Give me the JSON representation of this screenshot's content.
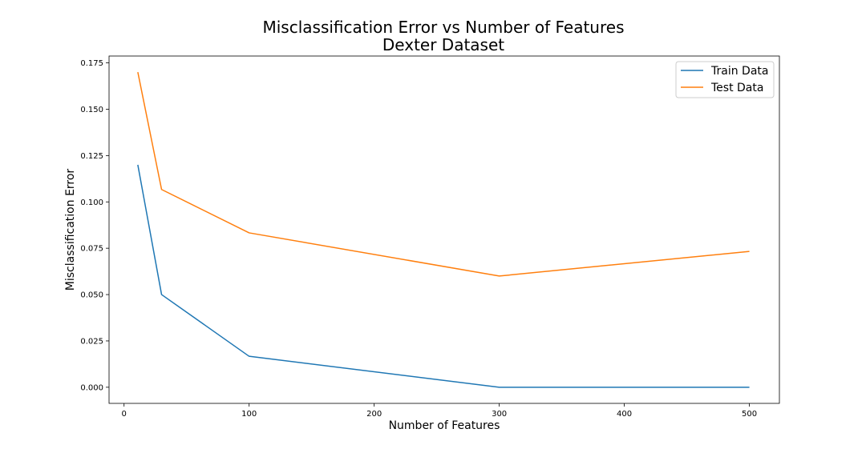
{
  "chart_data": {
    "type": "line",
    "title": "Misclassification Error vs Number of Features",
    "subtitle": "Dexter Dataset",
    "xlabel": "Number of Features",
    "ylabel": "Misclassification Error",
    "xlim": [
      -12,
      524
    ],
    "ylim": [
      -0.0087,
      0.1787
    ],
    "xticks": [
      0,
      100,
      200,
      300,
      400,
      500
    ],
    "xtick_labels": [
      "0",
      "100",
      "200",
      "300",
      "400",
      "500"
    ],
    "yticks": [
      0,
      0.025,
      0.05,
      0.075,
      0.1,
      0.125,
      0.15,
      0.175
    ],
    "ytick_labels": [
      "0.000",
      "0.025",
      "0.050",
      "0.075",
      "0.100",
      "0.125",
      "0.150",
      "0.175"
    ],
    "grid": false,
    "legend_position": "top-right",
    "x": [
      11,
      30,
      100,
      300,
      500
    ],
    "series": [
      {
        "name": "Train Data",
        "color": "#1f77b4",
        "values": [
          0.12,
          0.05,
          0.0167,
          0.0,
          0.0
        ]
      },
      {
        "name": "Test Data",
        "color": "#ff7f0e",
        "values": [
          0.17,
          0.1067,
          0.0833,
          0.06,
          0.0733
        ]
      }
    ]
  }
}
